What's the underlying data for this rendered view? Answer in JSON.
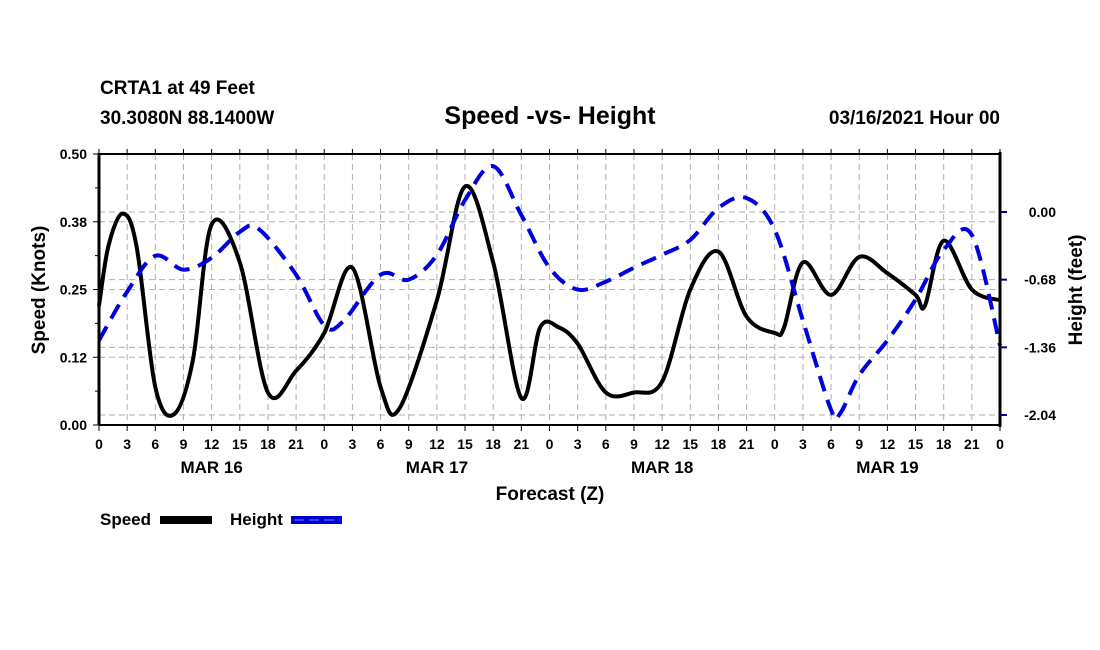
{
  "header": {
    "station": "CRTA1 at 49 Feet",
    "coords": "30.3080N 88.1400W",
    "title": "Speed -vs- Height",
    "date": "03/16/2021 Hour 00"
  },
  "colors": {
    "speed": "#000000",
    "height": "#0000dd",
    "grid": "#b0b0b0"
  },
  "chart_data": {
    "type": "line",
    "title": "Speed -vs- Height",
    "xlabel": "Forecast (Z)",
    "ylabel": "Speed (Knots)",
    "y2label": "Height (feet)",
    "xlim": [
      0,
      96
    ],
    "ylim": [
      0.0,
      0.5
    ],
    "y2lim_ticks": [
      0.0,
      -0.68,
      -1.36,
      -2.04
    ],
    "grid": true,
    "legend_position": "bottom-left",
    "x_tick_labels": [
      "0",
      "3",
      "6",
      "9",
      "12",
      "15",
      "18",
      "21",
      "0",
      "3",
      "6",
      "9",
      "12",
      "15",
      "18",
      "21",
      "0",
      "3",
      "6",
      "9",
      "12",
      "15",
      "18",
      "21",
      "0",
      "3",
      "6",
      "9",
      "12",
      "15",
      "18",
      "21",
      "0"
    ],
    "y_tick_labels": [
      "0.00",
      "0.12",
      "0.25",
      "0.38",
      "0.50"
    ],
    "y_tick_values": [
      0.0,
      0.125,
      0.25,
      0.375,
      0.5
    ],
    "y2_tick_labels": [
      "0.00",
      "-0.68",
      "-1.36",
      "-2.04"
    ],
    "y2_tick_values": [
      0.0,
      -0.68,
      -1.36,
      -2.04
    ],
    "day_labels": [
      {
        "label": "MAR 16",
        "hour": 12
      },
      {
        "label": "MAR 17",
        "hour": 36
      },
      {
        "label": "MAR 18",
        "hour": 60
      },
      {
        "label": "MAR 19",
        "hour": 84
      }
    ],
    "series": [
      {
        "name": "Speed",
        "axis": "left",
        "style": "solid",
        "x": [
          0,
          1,
          2.5,
          4,
          6,
          8,
          10,
          12,
          15,
          18,
          21,
          24,
          27,
          30,
          32,
          36,
          39,
          42,
          45,
          47,
          49,
          51,
          54,
          57,
          60,
          63,
          66,
          69,
          72,
          73,
          75,
          78,
          81,
          84,
          87,
          88,
          90,
          93,
          96
        ],
        "values": [
          0.22,
          0.33,
          0.39,
          0.33,
          0.07,
          0.02,
          0.12,
          0.37,
          0.3,
          0.06,
          0.1,
          0.17,
          0.29,
          0.07,
          0.03,
          0.23,
          0.44,
          0.3,
          0.05,
          0.18,
          0.18,
          0.15,
          0.06,
          0.06,
          0.08,
          0.25,
          0.32,
          0.2,
          0.17,
          0.18,
          0.3,
          0.24,
          0.31,
          0.28,
          0.24,
          0.22,
          0.34,
          0.25,
          0.23
        ]
      },
      {
        "name": "Height",
        "axis": "right",
        "style": "dashed",
        "x": [
          0,
          3,
          6,
          9,
          12,
          15,
          17,
          21,
          24,
          26,
          30,
          33,
          36,
          39,
          42,
          45,
          48,
          51,
          54,
          57,
          60,
          63,
          66,
          69,
          72,
          75,
          78,
          79,
          81,
          84,
          87,
          90,
          93,
          96
        ],
        "values": [
          -1.29,
          -0.8,
          -0.44,
          -0.58,
          -0.46,
          -0.2,
          -0.17,
          -0.63,
          -1.14,
          -1.1,
          -0.63,
          -0.68,
          -0.43,
          0.12,
          0.46,
          -0.03,
          -0.56,
          -0.78,
          -0.7,
          -0.56,
          -0.43,
          -0.28,
          0.04,
          0.14,
          -0.18,
          -1.09,
          -1.99,
          -2.02,
          -1.64,
          -1.29,
          -0.88,
          -0.38,
          -0.23,
          -1.34
        ]
      }
    ]
  },
  "legend": {
    "speed_label": "Speed",
    "height_label": "Height"
  }
}
